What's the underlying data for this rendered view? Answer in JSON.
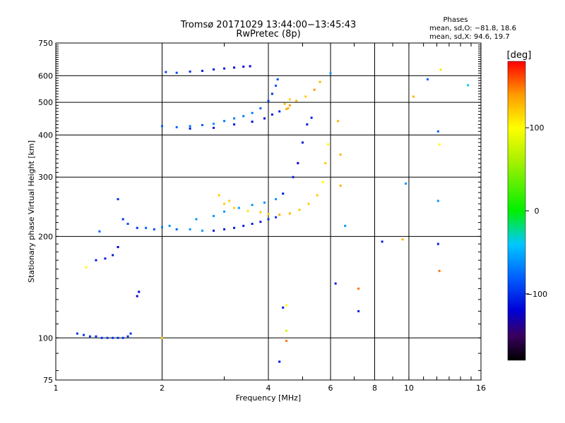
{
  "chart_data": {
    "type": "scatter",
    "title": "Tromsø 20171029 13:44:00−13:45:43",
    "subtitle": "RwPretec (8p)",
    "xlabel": "Frequency [MHz]",
    "ylabel": "Stationary phase Virtual Height [km]",
    "x_scale": "log",
    "y_scale": "log",
    "xlim": [
      1,
      16
    ],
    "ylim": [
      75,
      750
    ],
    "x_ticks": [
      {
        "v": 1,
        "label": "1"
      },
      {
        "v": 2,
        "label": "2"
      },
      {
        "v": 4,
        "label": "4"
      },
      {
        "v": 6,
        "label": "6"
      },
      {
        "v": 8,
        "label": "8"
      },
      {
        "v": 10,
        "label": "10"
      },
      {
        "v": 16,
        "label": "16"
      }
    ],
    "x_grid": [
      2,
      4,
      6,
      8,
      10
    ],
    "y_ticks": [
      {
        "v": 75,
        "label": "75"
      },
      {
        "v": 100,
        "label": "100"
      },
      {
        "v": 200,
        "label": "200"
      },
      {
        "v": 300,
        "label": "300"
      },
      {
        "v": 400,
        "label": "400"
      },
      {
        "v": 500,
        "label": "500"
      },
      {
        "v": 600,
        "label": "600"
      },
      {
        "v": 750,
        "label": "750"
      }
    ],
    "y_grid": [
      100,
      200,
      300,
      400,
      500,
      600
    ],
    "grid": true,
    "legend": {
      "title": "Phases",
      "line1": "mean, sd,O: −81.8, 18.6",
      "line2": "mean, sd,X:  94.6, 19.7"
    },
    "colorbar": {
      "label": "[deg]",
      "range": [
        -180,
        180
      ],
      "ticks": [
        {
          "v": 100,
          "label": "100"
        },
        {
          "v": 0,
          "label": "0"
        },
        {
          "v": -100,
          "label": "−100"
        }
      ],
      "stops": [
        {
          "v": -180,
          "color": "#000000"
        },
        {
          "v": -150,
          "color": "#3a0060"
        },
        {
          "v": -120,
          "color": "#0000d8"
        },
        {
          "v": -80,
          "color": "#0060ff"
        },
        {
          "v": -40,
          "color": "#00c8ff"
        },
        {
          "v": 0,
          "color": "#00f000"
        },
        {
          "v": 60,
          "color": "#a8f000"
        },
        {
          "v": 100,
          "color": "#ffff00"
        },
        {
          "v": 140,
          "color": "#ff9a00"
        },
        {
          "v": 180,
          "color": "#ff0000"
        }
      ]
    },
    "series": [
      {
        "values": [
          [
            1.15,
            103,
            -100
          ],
          [
            1.2,
            102,
            -100
          ],
          [
            1.25,
            101,
            -95
          ],
          [
            1.3,
            101,
            -100
          ],
          [
            1.35,
            100,
            -100
          ],
          [
            1.4,
            100,
            -95
          ],
          [
            1.45,
            100,
            -100
          ],
          [
            1.5,
            100,
            -100
          ],
          [
            1.55,
            100,
            -100
          ],
          [
            1.6,
            101,
            -100
          ],
          [
            1.63,
            103,
            -100
          ],
          [
            1.3,
            170,
            -110
          ],
          [
            1.38,
            172,
            -110
          ],
          [
            1.45,
            176,
            -110
          ],
          [
            1.5,
            186,
            -120
          ],
          [
            1.7,
            133,
            -120
          ],
          [
            1.72,
            137,
            -120
          ],
          [
            1.22,
            162,
            100
          ],
          [
            1.5,
            258,
            -100
          ],
          [
            1.55,
            225,
            -100
          ],
          [
            1.6,
            218,
            -90
          ],
          [
            1.7,
            212,
            -100
          ],
          [
            1.8,
            212,
            -80
          ],
          [
            1.9,
            210,
            -90
          ],
          [
            2.0,
            213,
            -70
          ],
          [
            2.1,
            215,
            -60
          ],
          [
            2.2,
            210,
            -80
          ],
          [
            2.4,
            210,
            -60
          ],
          [
            2.6,
            208,
            -60
          ],
          [
            2.8,
            208,
            -110
          ],
          [
            3.0,
            210,
            -110
          ],
          [
            3.2,
            212,
            -110
          ],
          [
            3.4,
            215,
            -110
          ],
          [
            3.6,
            218,
            -110
          ],
          [
            3.8,
            221,
            -110
          ],
          [
            4.0,
            225,
            -100
          ],
          [
            4.2,
            228,
            -100
          ],
          [
            2.5,
            225,
            -60
          ],
          [
            2.8,
            230,
            -60
          ],
          [
            3.0,
            237,
            -60
          ],
          [
            3.3,
            243,
            -60
          ],
          [
            3.6,
            248,
            -60
          ],
          [
            3.9,
            252,
            -60
          ],
          [
            4.2,
            258,
            -60
          ],
          [
            3.0,
            250,
            120
          ],
          [
            3.2,
            243,
            120
          ],
          [
            3.5,
            238,
            110
          ],
          [
            3.8,
            236,
            120
          ],
          [
            4.0,
            233,
            120
          ],
          [
            4.3,
            232,
            130
          ],
          [
            4.6,
            234,
            130
          ],
          [
            4.9,
            240,
            120
          ],
          [
            5.2,
            250,
            120
          ],
          [
            5.5,
            265,
            120
          ],
          [
            5.7,
            290,
            100
          ],
          [
            5.8,
            330,
            120
          ],
          [
            5.9,
            375,
            100
          ],
          [
            2.9,
            265,
            120
          ],
          [
            3.1,
            255,
            120
          ],
          [
            4.4,
            268,
            -110
          ],
          [
            4.7,
            300,
            -110
          ],
          [
            4.85,
            330,
            -120
          ],
          [
            5.0,
            380,
            -110
          ],
          [
            5.15,
            430,
            -110
          ],
          [
            5.3,
            450,
            -110
          ],
          [
            2.0,
            425,
            -80
          ],
          [
            2.2,
            422,
            -80
          ],
          [
            2.4,
            425,
            -70
          ],
          [
            2.6,
            428,
            -80
          ],
          [
            2.8,
            432,
            -60
          ],
          [
            3.0,
            440,
            -70
          ],
          [
            3.2,
            448,
            -70
          ],
          [
            3.4,
            455,
            -70
          ],
          [
            3.6,
            465,
            -70
          ],
          [
            3.8,
            480,
            -80
          ],
          [
            4.0,
            505,
            -90
          ],
          [
            4.1,
            530,
            -100
          ],
          [
            4.2,
            560,
            -90
          ],
          [
            4.25,
            585,
            -90
          ],
          [
            2.4,
            418,
            -110
          ],
          [
            2.8,
            420,
            -110
          ],
          [
            3.2,
            430,
            -110
          ],
          [
            3.6,
            438,
            -120
          ],
          [
            3.9,
            448,
            -120
          ],
          [
            4.1,
            460,
            -110
          ],
          [
            4.3,
            470,
            -110
          ],
          [
            4.5,
            478,
            130
          ],
          [
            4.6,
            490,
            140
          ],
          [
            4.8,
            505,
            130
          ],
          [
            5.1,
            520,
            120
          ],
          [
            5.4,
            545,
            140
          ],
          [
            5.6,
            575,
            130
          ],
          [
            2.05,
            615,
            -90
          ],
          [
            2.2,
            612,
            -90
          ],
          [
            2.4,
            617,
            -100
          ],
          [
            2.6,
            620,
            -110
          ],
          [
            2.8,
            626,
            -110
          ],
          [
            3.0,
            630,
            -110
          ],
          [
            3.2,
            634,
            -120
          ],
          [
            3.4,
            638,
            -120
          ],
          [
            3.55,
            640,
            -120
          ],
          [
            4.45,
            495,
            130
          ],
          [
            4.55,
            480,
            130
          ],
          [
            4.6,
            510,
            120
          ],
          [
            6.0,
            610,
            -60
          ],
          [
            6.3,
            440,
            130
          ],
          [
            6.4,
            350,
            130
          ],
          [
            6.4,
            283,
            130
          ],
          [
            6.6,
            215,
            -60
          ],
          [
            6.2,
            145,
            -110
          ],
          [
            7.2,
            140,
            150
          ],
          [
            7.2,
            120,
            -110
          ],
          [
            4.4,
            123,
            -110
          ],
          [
            4.5,
            125,
            100
          ],
          [
            4.3,
            85,
            -120
          ],
          [
            4.5,
            105,
            80
          ],
          [
            4.5,
            98,
            150
          ],
          [
            8.4,
            193,
            -110
          ],
          [
            9.6,
            196,
            130
          ],
          [
            9.8,
            287,
            -60
          ],
          [
            10.3,
            520,
            130
          ],
          [
            11.3,
            585,
            -80
          ],
          [
            12.1,
            410,
            -80
          ],
          [
            12.2,
            375,
            100
          ],
          [
            12.1,
            255,
            -60
          ],
          [
            12.1,
            190,
            -110
          ],
          [
            12.2,
            158,
            150
          ],
          [
            14.7,
            562,
            -40
          ],
          [
            12.3,
            625,
            110
          ],
          [
            2.0,
            100,
            120
          ],
          [
            1.33,
            207,
            -80
          ]
        ]
      }
    ]
  }
}
